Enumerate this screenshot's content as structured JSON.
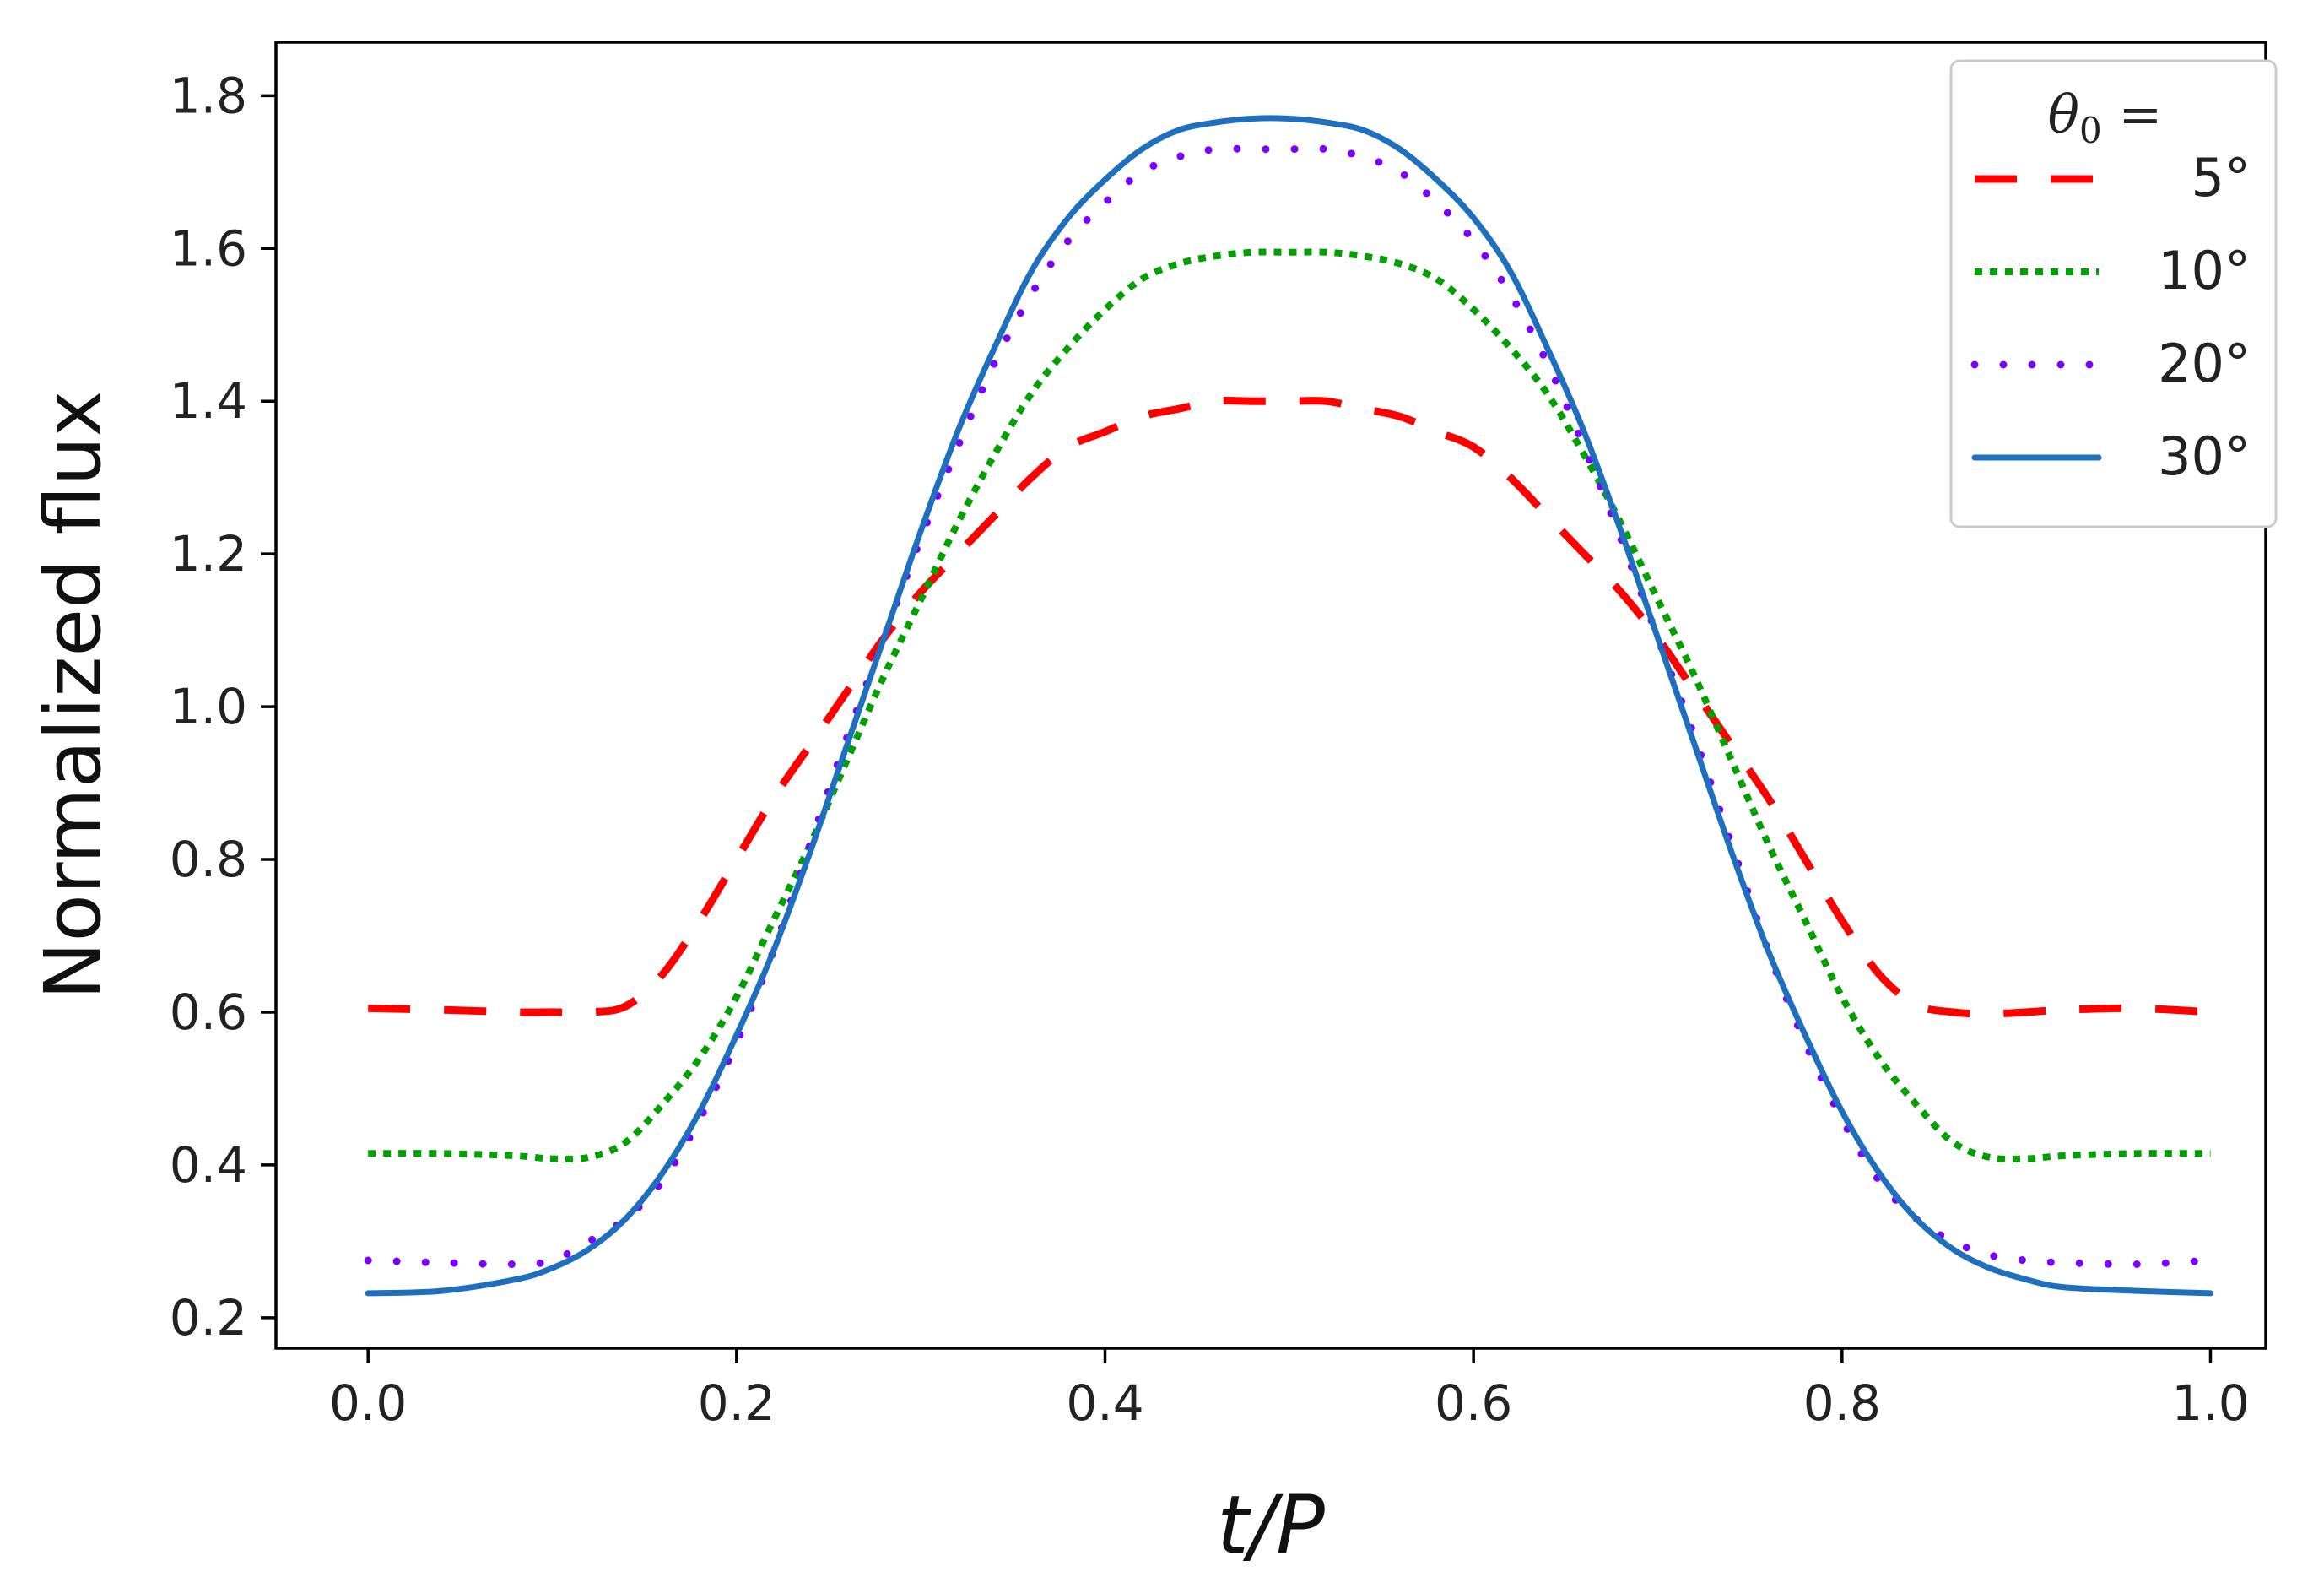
{
  "chart_data": {
    "type": "line",
    "title": "",
    "xlabel": "t/P",
    "ylabel": "Normalized flux",
    "xlim": [
      -0.05,
      1.03
    ],
    "ylim": [
      0.16,
      1.87
    ],
    "grid": false,
    "x_ticks": [
      0.0,
      0.2,
      0.4,
      0.6,
      0.8,
      1.0
    ],
    "x_tick_labels": [
      "0.0",
      "0.2",
      "0.4",
      "0.6",
      "0.8",
      "1.0"
    ],
    "y_ticks": [
      0.2,
      0.4,
      0.6,
      0.8,
      1.0,
      1.2,
      1.4,
      1.6,
      1.8
    ],
    "y_tick_labels": [
      "0.2",
      "0.4",
      "0.6",
      "0.8",
      "1.0",
      "1.2",
      "1.4",
      "1.6",
      "1.8"
    ],
    "legend": {
      "title_symbol": "θ",
      "title_subscript": "0",
      "title_suffix": " =",
      "placement": "top-right"
    },
    "x": [
      0.0,
      0.04,
      0.08,
      0.1,
      0.12,
      0.14,
      0.16,
      0.18,
      0.2,
      0.22,
      0.24,
      0.26,
      0.28,
      0.3,
      0.32,
      0.34,
      0.36,
      0.38,
      0.4,
      0.42,
      0.44,
      0.46,
      0.48,
      0.5,
      0.52,
      0.54,
      0.56,
      0.58,
      0.6,
      0.62,
      0.64,
      0.66,
      0.68,
      0.7,
      0.72,
      0.74,
      0.76,
      0.78,
      0.8,
      0.82,
      0.84,
      0.86,
      0.88,
      0.9,
      0.92,
      0.96,
      1.0
    ],
    "series": [
      {
        "name": "5°",
        "color": "#ff0000",
        "style": "dashed",
        "values": [
          0.605,
          0.603,
          0.6,
          0.6,
          0.6,
          0.608,
          0.65,
          0.72,
          0.8,
          0.88,
          0.95,
          1.02,
          1.09,
          1.15,
          1.2,
          1.25,
          1.3,
          1.34,
          1.36,
          1.38,
          1.39,
          1.4,
          1.4,
          1.4,
          1.4,
          1.39,
          1.38,
          1.36,
          1.34,
          1.3,
          1.25,
          1.2,
          1.15,
          1.09,
          1.02,
          0.95,
          0.88,
          0.8,
          0.72,
          0.65,
          0.61,
          0.6,
          0.598,
          0.6,
          0.603,
          0.605,
          0.6
        ]
      },
      {
        "name": "10°",
        "color": "#00a000",
        "style": "dotted",
        "values": [
          0.415,
          0.415,
          0.412,
          0.408,
          0.41,
          0.43,
          0.48,
          0.54,
          0.62,
          0.72,
          0.82,
          0.93,
          1.04,
          1.14,
          1.24,
          1.33,
          1.41,
          1.47,
          1.52,
          1.56,
          1.58,
          1.59,
          1.595,
          1.595,
          1.595,
          1.59,
          1.58,
          1.56,
          1.52,
          1.47,
          1.41,
          1.33,
          1.24,
          1.14,
          1.04,
          0.93,
          0.82,
          0.72,
          0.62,
          0.54,
          0.48,
          0.43,
          0.41,
          0.408,
          0.412,
          0.415,
          0.415
        ]
      },
      {
        "name": "20°",
        "color": "#7b00ff",
        "style": "sparse-dotted",
        "values": [
          0.275,
          0.272,
          0.27,
          0.275,
          0.3,
          0.33,
          0.38,
          0.46,
          0.56,
          0.68,
          0.82,
          0.96,
          1.09,
          1.22,
          1.34,
          1.45,
          1.54,
          1.61,
          1.66,
          1.7,
          1.72,
          1.73,
          1.73,
          1.73,
          1.73,
          1.72,
          1.7,
          1.66,
          1.61,
          1.54,
          1.45,
          1.34,
          1.22,
          1.09,
          0.96,
          0.82,
          0.68,
          0.56,
          0.46,
          0.38,
          0.33,
          0.3,
          0.282,
          0.275,
          0.272,
          0.27,
          0.275
        ]
      },
      {
        "name": "30°",
        "color": "#1f6fbf",
        "style": "solid",
        "values": [
          0.232,
          0.235,
          0.25,
          0.265,
          0.29,
          0.33,
          0.39,
          0.47,
          0.57,
          0.68,
          0.81,
          0.95,
          1.09,
          1.23,
          1.36,
          1.47,
          1.57,
          1.64,
          1.69,
          1.73,
          1.755,
          1.765,
          1.77,
          1.77,
          1.765,
          1.755,
          1.73,
          1.69,
          1.64,
          1.57,
          1.47,
          1.36,
          1.23,
          1.09,
          0.95,
          0.81,
          0.68,
          0.57,
          0.47,
          0.39,
          0.33,
          0.29,
          0.265,
          0.25,
          0.24,
          0.235,
          0.232
        ]
      }
    ]
  }
}
